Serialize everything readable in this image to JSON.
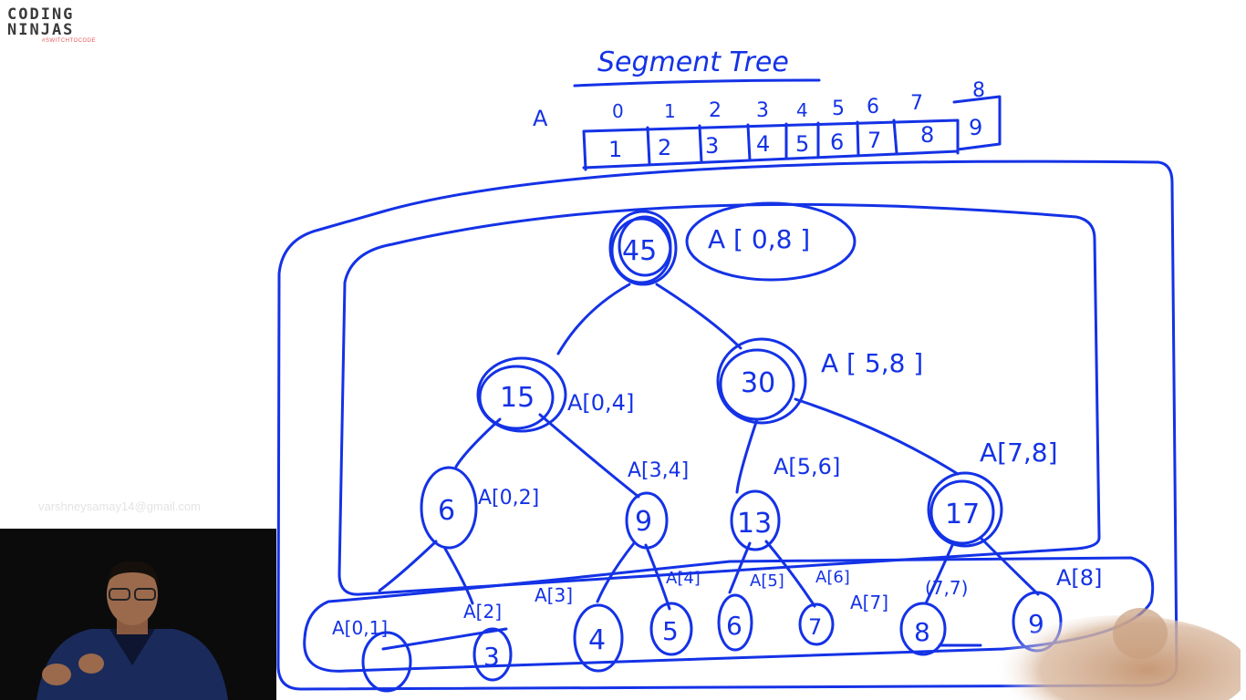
{
  "logo": {
    "line1": "CODING",
    "line2": "NINJAS",
    "tagline": "#SWITCHTOCODE"
  },
  "watermark": "varshneysamay14@gmail.com",
  "diagram": {
    "title": "Segment Tree",
    "array_label": "A",
    "indices": [
      "0",
      "1",
      "2",
      "3",
      "4",
      "5",
      "6",
      "7",
      "8"
    ],
    "values": [
      "1",
      "2",
      "3",
      "4",
      "5",
      "6",
      "7",
      "8",
      "9"
    ],
    "nodes": [
      {
        "id": "root",
        "value": "45",
        "range": "A [ 0,8 ]"
      },
      {
        "id": "left",
        "value": "15",
        "range": "A[0,4]"
      },
      {
        "id": "right",
        "value": "30",
        "range": "A [ 5,8 ]"
      },
      {
        "id": "ll",
        "value": "6",
        "range": "A[0,2]"
      },
      {
        "id": "lr",
        "value": "9",
        "range": "A[3,4]"
      },
      {
        "id": "rl",
        "value": "13",
        "range": "A[5,6]"
      },
      {
        "id": "rr",
        "value": "17",
        "range": "A[7,8]"
      },
      {
        "id": "lll",
        "value": "",
        "range": "A[0,1]"
      },
      {
        "id": "llr",
        "value": "3",
        "range": "A[2]"
      },
      {
        "id": "lrl",
        "value": "4",
        "range": "A[3]"
      },
      {
        "id": "lrr",
        "value": "5",
        "range": "A[4]"
      },
      {
        "id": "rll",
        "value": "6",
        "range": "A[5]"
      },
      {
        "id": "rlr",
        "value": "7",
        "range": "A[6]"
      },
      {
        "id": "rrl",
        "value": "8",
        "range": "A[7]"
      },
      {
        "id": "rrr",
        "value": "9",
        "range": "A[8]"
      }
    ],
    "extra_label": "(7,7)"
  },
  "colors": {
    "ink": "#1432e6",
    "brand": "#e8585a"
  }
}
